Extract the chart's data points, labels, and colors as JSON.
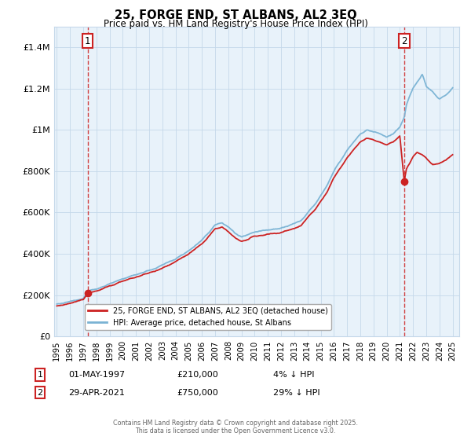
{
  "title": "25, FORGE END, ST ALBANS, AL2 3EQ",
  "subtitle": "Price paid vs. HM Land Registry's House Price Index (HPI)",
  "xlim": [
    1994.8,
    2025.5
  ],
  "ylim": [
    0,
    1500000
  ],
  "yticks": [
    0,
    200000,
    400000,
    600000,
    800000,
    1000000,
    1200000,
    1400000
  ],
  "ytick_labels": [
    "£0",
    "£200K",
    "£400K",
    "£600K",
    "£800K",
    "£1M",
    "£1.2M",
    "£1.4M"
  ],
  "xticks": [
    1995,
    1996,
    1997,
    1998,
    1999,
    2000,
    2001,
    2002,
    2003,
    2004,
    2005,
    2006,
    2007,
    2008,
    2009,
    2010,
    2011,
    2012,
    2013,
    2014,
    2015,
    2016,
    2017,
    2018,
    2019,
    2020,
    2021,
    2022,
    2023,
    2024,
    2025
  ],
  "purchase1_x": 1997.33,
  "purchase1_y": 210000,
  "purchase1_label": "1",
  "purchase2_x": 2021.33,
  "purchase2_y": 750000,
  "purchase2_label": "2",
  "legend_property_label": "25, FORGE END, ST ALBANS, AL2 3EQ (detached house)",
  "legend_hpi_label": "HPI: Average price, detached house, St Albans",
  "footer": "Contains HM Land Registry data © Crown copyright and database right 2025.\nThis data is licensed under the Open Government Licence v3.0.",
  "hpi_color": "#7ab3d4",
  "property_color": "#cc2222",
  "bg_color": "#e8f2fa",
  "grid_color": "#c5d8ea",
  "dashed_line_color": "#cc2222",
  "hpi_knots_x": [
    1995,
    1996,
    1997,
    1997.33,
    1998,
    1999,
    2000,
    2001,
    2002,
    2003,
    2004,
    2005,
    2006,
    2007,
    2007.5,
    2008,
    2008.5,
    2009,
    2009.5,
    2010,
    2011,
    2012,
    2013,
    2013.5,
    2014,
    2014.5,
    2015,
    2015.5,
    2016,
    2016.5,
    2017,
    2017.5,
    2018,
    2018.5,
    2019,
    2019.5,
    2020,
    2020.5,
    2021,
    2021.33,
    2021.5,
    2021.8,
    2022,
    2022.3,
    2022.7,
    2023,
    2023.5,
    2024,
    2024.5,
    2025
  ],
  "hpi_knots_y": [
    155000,
    168000,
    185000,
    219000,
    230000,
    255000,
    280000,
    300000,
    320000,
    345000,
    375000,
    415000,
    465000,
    540000,
    550000,
    530000,
    500000,
    480000,
    490000,
    505000,
    515000,
    525000,
    545000,
    560000,
    600000,
    635000,
    680000,
    730000,
    800000,
    850000,
    900000,
    940000,
    980000,
    1000000,
    990000,
    980000,
    965000,
    980000,
    1010000,
    1060000,
    1120000,
    1170000,
    1200000,
    1230000,
    1270000,
    1210000,
    1180000,
    1150000,
    1170000,
    1200000
  ],
  "prop_knots_x": [
    1995,
    1996,
    1997,
    1997.33,
    1998,
    1999,
    2000,
    2001,
    2002,
    2003,
    2004,
    2005,
    2006,
    2007,
    2007.5,
    2008,
    2008.5,
    2009,
    2009.5,
    2010,
    2011,
    2012,
    2013,
    2013.5,
    2014,
    2014.5,
    2015,
    2015.5,
    2016,
    2016.5,
    2017,
    2017.5,
    2018,
    2018.5,
    2019,
    2019.5,
    2020,
    2020.5,
    2021,
    2021.33,
    2021.5,
    2022,
    2022.3,
    2022.7,
    2023,
    2023.5,
    2024,
    2024.5,
    2025
  ],
  "prop_knots_y": [
    148000,
    160000,
    178000,
    210000,
    220000,
    244000,
    268000,
    288000,
    308000,
    332000,
    361000,
    400000,
    447000,
    520000,
    528000,
    507000,
    478000,
    460000,
    470000,
    484000,
    494000,
    504000,
    523000,
    537000,
    576000,
    610000,
    654000,
    700000,
    768000,
    815000,
    864000,
    902000,
    941000,
    960000,
    950000,
    940000,
    926000,
    941000,
    970000,
    750000,
    810000,
    870000,
    890000,
    880000,
    860000,
    830000,
    840000,
    855000,
    880000
  ]
}
